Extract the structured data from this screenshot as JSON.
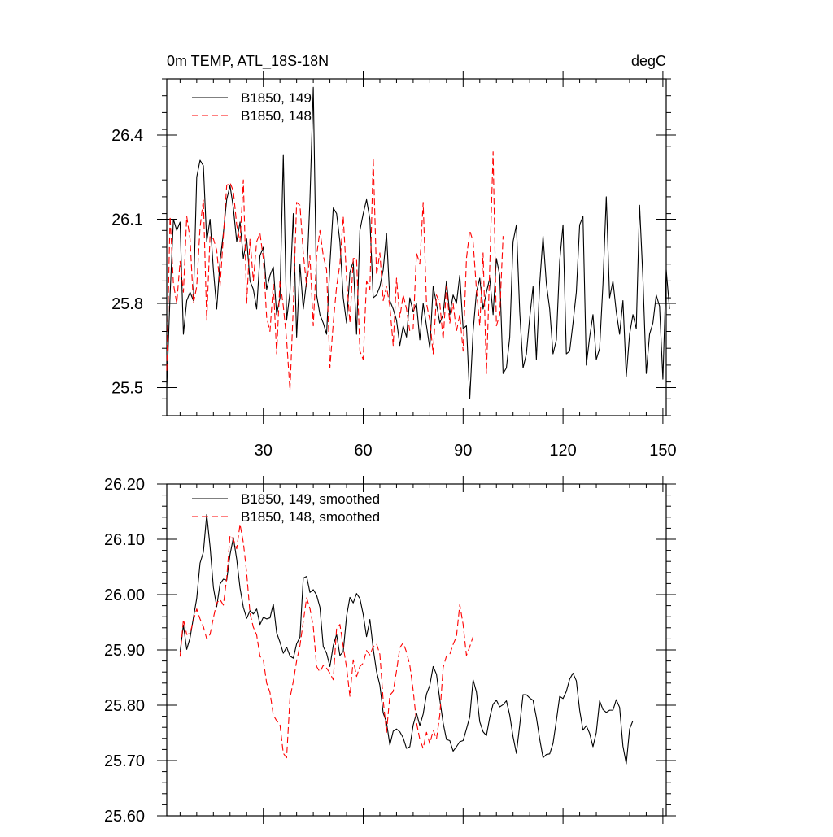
{
  "chart_data": [
    {
      "type": "line",
      "title_left": "0m TEMP, ATL_18S-18N",
      "title_right": "degC",
      "xlabel": "",
      "ylabel": "",
      "xlim": [
        1,
        151
      ],
      "ylim": [
        25.4,
        26.6
      ],
      "xticks": [
        30,
        60,
        90,
        120,
        150
      ],
      "xtick_labels": [
        "30",
        "60",
        "90",
        "120",
        "150"
      ],
      "yticks": [
        25.5,
        25.8,
        26.1,
        26.4
      ],
      "ytick_labels": [
        "25.5",
        "25.8",
        "26.1",
        "26.4"
      ],
      "legend_position": "top-left",
      "series": [
        {
          "name": "B1850, 149",
          "color": "#000000",
          "style": "solid",
          "x_start": 1,
          "values": [
            25.5,
            25.83,
            26.1,
            26.06,
            26.09,
            25.69,
            25.81,
            25.84,
            25.81,
            26.25,
            26.31,
            26.29,
            26.02,
            26.1,
            25.92,
            25.78,
            25.95,
            26.05,
            26.17,
            26.22,
            26.14,
            26.02,
            26.09,
            25.96,
            26.03,
            25.88,
            25.85,
            25.78,
            25.97,
            26.0,
            25.85,
            25.9,
            25.93,
            25.76,
            25.82,
            26.33,
            25.74,
            25.84,
            26.12,
            25.68,
            25.94,
            25.78,
            25.88,
            26.17,
            26.57,
            25.83,
            25.76,
            25.73,
            25.69,
            25.94,
            26.14,
            26.12,
            26.02,
            25.82,
            25.73,
            25.91,
            25.95,
            25.69,
            26.06,
            26.12,
            26.17,
            26.1,
            25.82,
            25.83,
            25.86,
            25.92,
            26.05,
            25.81,
            25.78,
            25.74,
            25.65,
            25.72,
            25.68,
            25.82,
            25.77,
            25.8,
            25.67,
            25.8,
            25.72,
            25.64,
            25.86,
            25.8,
            25.73,
            25.76,
            25.88,
            25.76,
            25.83,
            25.8,
            25.9,
            25.71,
            25.72,
            25.46,
            25.7,
            25.84,
            25.89,
            25.78,
            25.84,
            25.89,
            25.76,
            25.96,
            25.9,
            25.55,
            25.57,
            25.68,
            26.02,
            26.08,
            25.77,
            25.57,
            25.62,
            25.75,
            25.86,
            25.6,
            25.87,
            26.04,
            25.87,
            25.78,
            25.62,
            25.67,
            25.95,
            26.08,
            25.62,
            25.63,
            25.73,
            25.84,
            26.08,
            26.11,
            25.58,
            25.68,
            25.76,
            25.6,
            25.64,
            25.87,
            26.18,
            25.82,
            25.88,
            25.77,
            25.69,
            25.81,
            25.54,
            25.69,
            25.76,
            25.71,
            26.15,
            25.89,
            25.55,
            25.69,
            25.73,
            25.83,
            25.79,
            25.53,
            25.92,
            25.78
          ]
        },
        {
          "name": "B1850, 148",
          "color": "#ff0000",
          "style": "dashed",
          "x_start": 1,
          "values": [
            25.56,
            26.11,
            25.87,
            25.8,
            25.95,
            25.84,
            26.11,
            26.03,
            25.8,
            25.86,
            26.07,
            26.17,
            25.74,
            26.04,
            26.03,
            25.99,
            25.86,
            26.04,
            26.22,
            26.23,
            26.2,
            26.08,
            26.02,
            26.24,
            25.8,
            26.03,
            25.88,
            26.02,
            26.05,
            25.96,
            25.75,
            25.7,
            25.87,
            25.62,
            25.88,
            25.79,
            25.67,
            25.49,
            25.79,
            26.16,
            26.15,
            25.98,
            25.86,
            25.97,
            25.72,
            25.97,
            26.06,
            25.97,
            25.92,
            25.57,
            25.73,
            25.86,
            25.94,
            26.11,
            25.89,
            25.73,
            25.96,
            25.96,
            25.63,
            25.6,
            25.88,
            25.85,
            26.32,
            25.9,
            25.98,
            25.81,
            25.86,
            25.79,
            25.65,
            25.89,
            25.75,
            25.83,
            25.78,
            25.7,
            25.71,
            25.98,
            25.94,
            26.16,
            25.8,
            25.74,
            25.62,
            25.83,
            25.8,
            25.67,
            25.86,
            25.73,
            25.8,
            25.7,
            25.76,
            25.63,
            25.96,
            26.06,
            26.02,
            25.85,
            25.72,
            25.98,
            25.55,
            25.93,
            26.34,
            25.72,
            25.76,
            26.04
          ]
        }
      ]
    },
    {
      "type": "line",
      "title": "",
      "xlabel": "",
      "ylabel": "",
      "xlim": [
        1,
        151
      ],
      "ylim": [
        25.6,
        26.2
      ],
      "xticks": [
        30,
        60,
        90,
        120,
        150
      ],
      "xtick_labels": [],
      "yticks": [
        25.6,
        25.7,
        25.8,
        25.9,
        26.0,
        26.1,
        26.2
      ],
      "ytick_labels": [
        "25.60",
        "25.70",
        "25.80",
        "25.90",
        "26.00",
        "26.10",
        "26.20"
      ],
      "legend_position": "top-left",
      "series": [
        {
          "name": "B1850, 149, smoothed",
          "color": "#000000",
          "style": "solid",
          "x_start": 5,
          "values": [
            25.896,
            25.945,
            25.901,
            25.922,
            25.958,
            25.993,
            26.057,
            26.077,
            26.145,
            26.087,
            26.013,
            25.978,
            26.019,
            26.028,
            26.026,
            26.072,
            26.103,
            26.064,
            26.012,
            25.977,
            25.957,
            25.971,
            25.965,
            25.974,
            25.946,
            25.959,
            25.956,
            25.958,
            25.983,
            25.931,
            25.914,
            25.894,
            25.905,
            25.889,
            25.885,
            25.911,
            25.923,
            26.03,
            26.033,
            26.004,
            26.009,
            25.999,
            25.977,
            25.906,
            25.894,
            25.87,
            25.908,
            25.928,
            25.89,
            25.897,
            25.961,
            25.995,
            25.985,
            26.002,
            25.993,
            25.964,
            25.924,
            25.955,
            25.902,
            25.861,
            25.836,
            25.786,
            25.769,
            25.728,
            25.753,
            25.757,
            25.752,
            25.741,
            25.722,
            25.725,
            25.764,
            25.786,
            25.763,
            25.784,
            25.82,
            25.836,
            25.87,
            25.856,
            25.81,
            25.768,
            25.738,
            25.736,
            25.717,
            25.725,
            25.734,
            25.736,
            25.757,
            25.779,
            25.846,
            25.824,
            25.77,
            25.752,
            25.745,
            25.778,
            25.802,
            25.809,
            25.797,
            25.801,
            25.808,
            25.782,
            25.743,
            25.713,
            25.764,
            25.819,
            25.819,
            25.813,
            25.809,
            25.778,
            25.739,
            25.705,
            25.711,
            25.712,
            25.731,
            25.772,
            25.816,
            25.812,
            25.825,
            25.847,
            25.858,
            25.844,
            25.791,
            25.755,
            25.763,
            25.749,
            25.725,
            25.751,
            25.808,
            25.792,
            25.787,
            25.791,
            25.791,
            25.81,
            25.796,
            25.726,
            25.694,
            25.757,
            25.772
          ]
        },
        {
          "name": "B1850, 148, smoothed",
          "color": "#ff0000",
          "style": "dashed",
          "x_start": 5,
          "values": [
            25.888,
            25.955,
            25.928,
            25.93,
            25.953,
            25.974,
            25.956,
            25.942,
            25.92,
            25.928,
            25.958,
            25.985,
            25.991,
            25.981,
            26.03,
            26.107,
            26.1,
            26.083,
            26.127,
            26.094,
            26.039,
            25.966,
            25.941,
            25.927,
            25.888,
            25.882,
            25.84,
            25.823,
            25.782,
            25.772,
            25.765,
            25.713,
            25.705,
            25.813,
            25.843,
            25.88,
            25.908,
            25.951,
            25.994,
            25.975,
            25.942,
            25.87,
            25.86,
            25.872,
            25.867,
            25.858,
            25.846,
            25.939,
            25.946,
            25.906,
            25.868,
            25.816,
            25.882,
            25.852,
            25.87,
            25.876,
            25.899,
            25.891,
            25.906,
            25.911,
            25.892,
            25.809,
            25.751,
            25.818,
            25.825,
            25.862,
            25.904,
            25.913,
            25.896,
            25.872,
            25.827,
            25.769,
            25.738,
            25.722,
            25.751,
            25.73,
            25.755,
            25.739,
            25.782,
            25.868,
            25.889,
            25.892,
            25.91,
            25.924,
            25.982,
            25.946,
            25.89,
            25.906,
            25.924
          ]
        }
      ]
    }
  ]
}
